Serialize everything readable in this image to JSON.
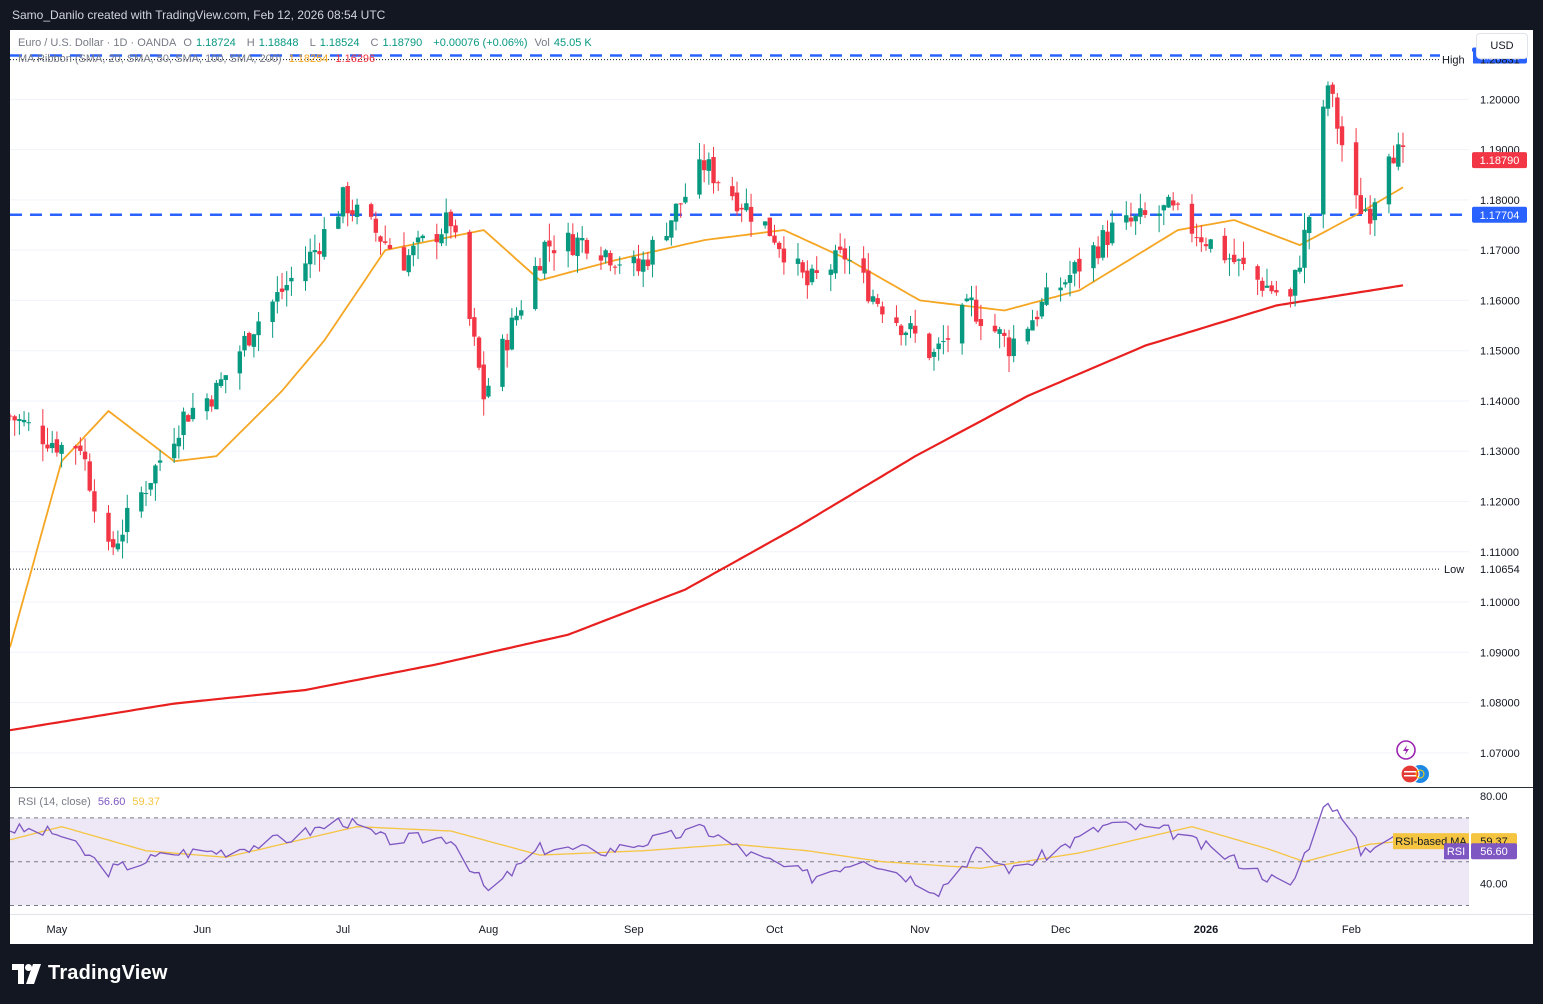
{
  "header": {
    "credit": "Samo_Danilo created with TradingView.com, Feb 12, 2026 08:54 UTC"
  },
  "legend": {
    "symbol": "Euro / U.S. Dollar · 1D · OANDA",
    "open_label": "O",
    "open": "1.18724",
    "high_label": "H",
    "high": "1.18848",
    "low_label": "L",
    "low": "1.18524",
    "close_label": "C",
    "close": "1.18790",
    "change": "+0.00076 (+0.06%)",
    "vol_label": "Vol",
    "vol": "45.05 K",
    "ma_title": "MA Ribbon (SMA, 20, SMA, 50, SMA, 100, SMA, 200)",
    "ma1_value": "1.18254",
    "ma2_value": "1.16296"
  },
  "currency_button": "USD",
  "price_axis": {
    "ticks": [
      "1.20000",
      "1.19000",
      "1.18000",
      "1.17000",
      "1.16000",
      "1.15000",
      "1.14000",
      "1.13000",
      "1.12000",
      "1.11000",
      "1.10000",
      "1.09000",
      "1.08000",
      "1.07000"
    ],
    "high_label": "High",
    "high_value": "1.20831",
    "low_label": "Low",
    "low_value": "1.10654",
    "resistance_value": "1.20872",
    "support_value": "1.17704",
    "last_price": "1.18790"
  },
  "rsi": {
    "title": "RSI (14, close)",
    "rsi_value": "56.60",
    "ma_value": "59.37",
    "ma_label": "RSI-based MA",
    "rsi_label": "RSI",
    "ticks": [
      "80.00",
      "40.00"
    ]
  },
  "time_axis": [
    "May",
    "Jun",
    "Jul",
    "Aug",
    "Sep",
    "Oct",
    "Nov",
    "Dec",
    "2026",
    "Feb"
  ],
  "brand": "TradingView",
  "colors": {
    "up": "#089981",
    "down": "#f23645",
    "sma20": "#f5a623",
    "sma200": "#e8201f",
    "level_line": "#2962ff",
    "rsi_line": "#7e57c2",
    "rsi_ma": "#f5c542",
    "rsi_band": "#ede7f6"
  },
  "chart_data": {
    "type": "candlestick",
    "title": "Euro / U.S. Dollar · 1D · OANDA",
    "ylim": [
      1.063,
      1.2138
    ],
    "horizontal_levels": [
      1.20872,
      1.17704
    ],
    "highlow_markers": {
      "high": 1.20831,
      "low": 1.10654
    },
    "price_path": [
      {
        "date": "2025-04-21",
        "price": 1.137
      },
      {
        "date": "2025-05-02",
        "price": 1.131
      },
      {
        "date": "2025-05-06",
        "price": 1.1315
      },
      {
        "date": "2025-05-12",
        "price": 1.1095
      },
      {
        "date": "2025-05-28",
        "price": 1.137
      },
      {
        "date": "2025-06-04",
        "price": 1.142
      },
      {
        "date": "2025-06-12",
        "price": 1.155
      },
      {
        "date": "2025-06-25",
        "price": 1.17
      },
      {
        "date": "2025-07-01",
        "price": 1.18
      },
      {
        "date": "2025-07-14",
        "price": 1.168
      },
      {
        "date": "2025-07-24",
        "price": 1.176
      },
      {
        "date": "2025-07-31",
        "price": 1.141
      },
      {
        "date": "2025-08-13",
        "price": 1.171
      },
      {
        "date": "2025-08-22",
        "price": 1.172
      },
      {
        "date": "2025-09-02",
        "price": 1.166
      },
      {
        "date": "2025-09-16",
        "price": 1.187
      },
      {
        "date": "2025-10-01",
        "price": 1.173
      },
      {
        "date": "2025-10-08",
        "price": 1.163
      },
      {
        "date": "2025-10-16",
        "price": 1.169
      },
      {
        "date": "2025-10-22",
        "price": 1.161
      },
      {
        "date": "2025-11-04",
        "price": 1.149
      },
      {
        "date": "2025-11-12",
        "price": 1.159
      },
      {
        "date": "2025-11-20",
        "price": 1.151
      },
      {
        "date": "2025-11-28",
        "price": 1.16
      },
      {
        "date": "2025-12-12",
        "price": 1.174
      },
      {
        "date": "2025-12-24",
        "price": 1.178
      },
      {
        "date": "2025-12-31",
        "price": 1.173
      },
      {
        "date": "2026-01-12",
        "price": 1.164
      },
      {
        "date": "2026-01-19",
        "price": 1.16
      },
      {
        "date": "2026-01-23",
        "price": 1.177
      },
      {
        "date": "2026-01-27",
        "price": 1.203
      },
      {
        "date": "2026-02-02",
        "price": 1.179
      },
      {
        "date": "2026-02-05",
        "price": 1.178
      },
      {
        "date": "2026-02-09",
        "price": 1.191
      },
      {
        "date": "2026-02-12",
        "price": 1.1879
      }
    ],
    "sma20": [
      {
        "date": "2025-04-21",
        "value": 1.091
      },
      {
        "date": "2025-05-02",
        "value": 1.128
      },
      {
        "date": "2025-05-12",
        "value": 1.138
      },
      {
        "date": "2025-05-26",
        "value": 1.128
      },
      {
        "date": "2025-06-04",
        "value": 1.129
      },
      {
        "date": "2025-06-18",
        "value": 1.142
      },
      {
        "date": "2025-06-27",
        "value": 1.152
      },
      {
        "date": "2025-07-10",
        "value": 1.17
      },
      {
        "date": "2025-07-31",
        "value": 1.174
      },
      {
        "date": "2025-08-12",
        "value": 1.164
      },
      {
        "date": "2025-08-28",
        "value": 1.168
      },
      {
        "date": "2025-09-16",
        "value": 1.172
      },
      {
        "date": "2025-10-03",
        "value": 1.174
      },
      {
        "date": "2025-10-17",
        "value": 1.168
      },
      {
        "date": "2025-11-01",
        "value": 1.16
      },
      {
        "date": "2025-11-19",
        "value": 1.158
      },
      {
        "date": "2025-12-05",
        "value": 1.162
      },
      {
        "date": "2025-12-26",
        "value": 1.174
      },
      {
        "date": "2026-01-07",
        "value": 1.176
      },
      {
        "date": "2026-01-21",
        "value": 1.171
      },
      {
        "date": "2026-02-02",
        "value": 1.177
      },
      {
        "date": "2026-02-12",
        "value": 1.1825
      }
    ],
    "sma200": [
      {
        "date": "2025-04-21",
        "value": 1.0745
      },
      {
        "date": "2025-05-26",
        "value": 1.0798
      },
      {
        "date": "2025-06-23",
        "value": 1.0825
      },
      {
        "date": "2025-07-21",
        "value": 1.0876
      },
      {
        "date": "2025-08-18",
        "value": 1.0935
      },
      {
        "date": "2025-09-12",
        "value": 1.1025
      },
      {
        "date": "2025-10-06",
        "value": 1.115
      },
      {
        "date": "2025-10-31",
        "value": 1.129
      },
      {
        "date": "2025-11-24",
        "value": 1.141
      },
      {
        "date": "2025-12-19",
        "value": 1.151
      },
      {
        "date": "2026-01-16",
        "value": 1.159
      },
      {
        "date": "2026-02-12",
        "value": 1.163
      }
    ],
    "rsi": [
      {
        "date": "2025-04-21",
        "value": 65
      },
      {
        "date": "2025-05-01",
        "value": 63
      },
      {
        "date": "2025-05-12",
        "value": 46
      },
      {
        "date": "2025-05-26",
        "value": 54
      },
      {
        "date": "2025-06-06",
        "value": 55
      },
      {
        "date": "2025-06-20",
        "value": 61
      },
      {
        "date": "2025-07-01",
        "value": 69
      },
      {
        "date": "2025-07-10",
        "value": 60
      },
      {
        "date": "2025-07-24",
        "value": 61
      },
      {
        "date": "2025-08-01",
        "value": 36
      },
      {
        "date": "2025-08-12",
        "value": 56
      },
      {
        "date": "2025-08-26",
        "value": 55
      },
      {
        "date": "2025-09-16",
        "value": 65
      },
      {
        "date": "2025-09-26",
        "value": 53
      },
      {
        "date": "2025-10-09",
        "value": 43
      },
      {
        "date": "2025-10-20",
        "value": 52
      },
      {
        "date": "2025-11-05",
        "value": 37
      },
      {
        "date": "2025-11-13",
        "value": 55
      },
      {
        "date": "2025-11-21",
        "value": 46
      },
      {
        "date": "2025-12-11",
        "value": 67
      },
      {
        "date": "2025-12-24",
        "value": 64
      },
      {
        "date": "2026-01-07",
        "value": 51
      },
      {
        "date": "2026-01-19",
        "value": 38
      },
      {
        "date": "2026-01-27",
        "value": 79
      },
      {
        "date": "2026-02-03",
        "value": 55
      },
      {
        "date": "2026-02-09",
        "value": 61
      },
      {
        "date": "2026-02-12",
        "value": 56.6
      }
    ],
    "rsi_ma": [
      {
        "date": "2025-04-21",
        "value": 60
      },
      {
        "date": "2025-05-02",
        "value": 66
      },
      {
        "date": "2025-05-20",
        "value": 55
      },
      {
        "date": "2025-06-06",
        "value": 52
      },
      {
        "date": "2025-07-04",
        "value": 66
      },
      {
        "date": "2025-07-24",
        "value": 64
      },
      {
        "date": "2025-08-12",
        "value": 53
      },
      {
        "date": "2025-09-03",
        "value": 55
      },
      {
        "date": "2025-09-22",
        "value": 58
      },
      {
        "date": "2025-10-08",
        "value": 55
      },
      {
        "date": "2025-10-24",
        "value": 50
      },
      {
        "date": "2025-11-14",
        "value": 47
      },
      {
        "date": "2025-12-05",
        "value": 54
      },
      {
        "date": "2025-12-29",
        "value": 66
      },
      {
        "date": "2026-01-14",
        "value": 56
      },
      {
        "date": "2026-01-22",
        "value": 50
      },
      {
        "date": "2026-02-05",
        "value": 58
      },
      {
        "date": "2026-02-12",
        "value": 59.37
      }
    ]
  }
}
